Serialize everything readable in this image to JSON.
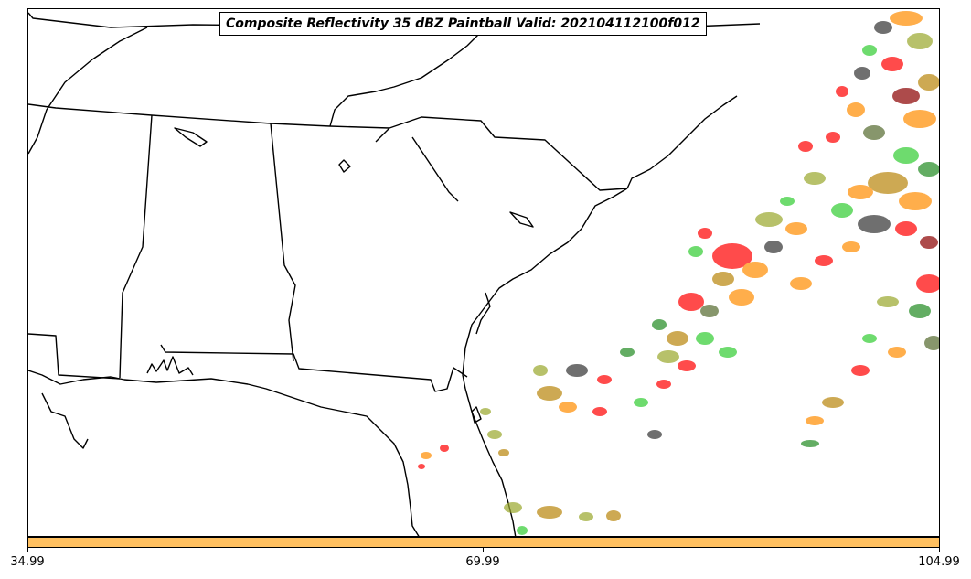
{
  "map": {
    "title": "Composite Reflectivity 35 dBZ Paintball Valid: 202104112100f012",
    "ensemble_member_colors": [
      "#ff0000",
      "#ff8c00",
      "#32cd32",
      "#228b22",
      "#9aa82c",
      "#333333",
      "#8b0000",
      "#b8860b",
      "#556b2f"
    ]
  },
  "colorbar": {
    "color": "#ffc060",
    "ticks": [
      "34.99",
      "69.99",
      "104.99"
    ]
  }
}
